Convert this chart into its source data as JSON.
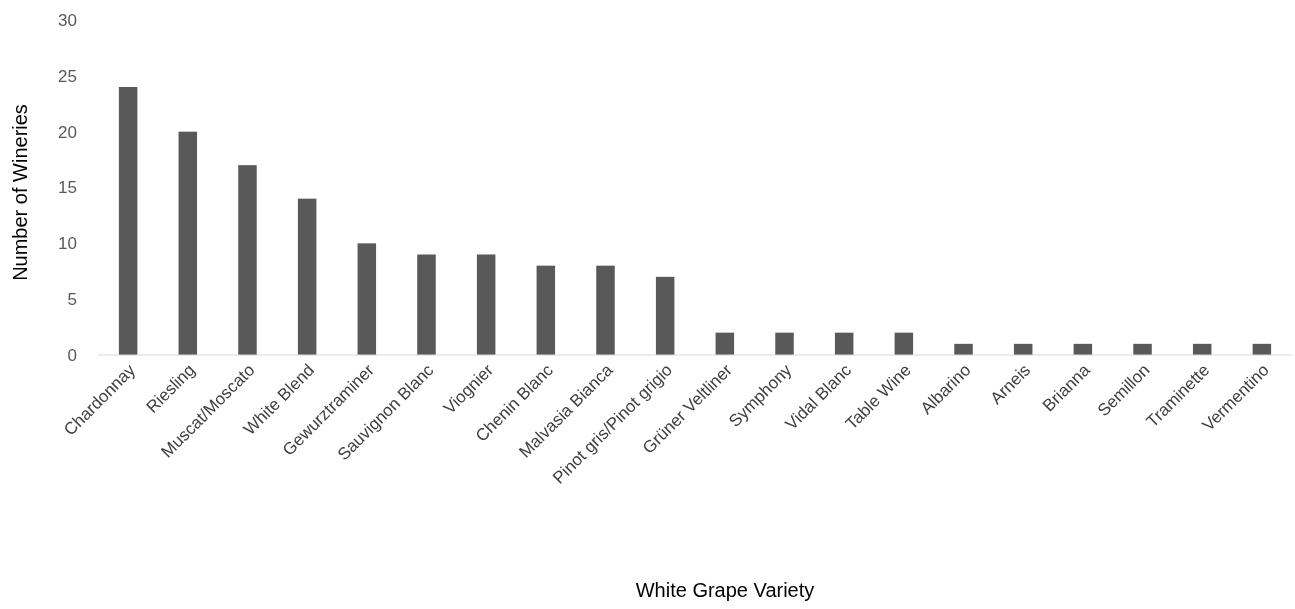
{
  "chart_data": {
    "type": "bar",
    "xlabel": "White Grape Variety",
    "ylabel": "Number of Wineries",
    "categories": [
      "Chardonnay",
      "Riesling",
      "Muscat/Moscato",
      "White Blend",
      "Gewurztraminer",
      "Sauvignon Blanc",
      "Viognier",
      "Chenin Blanc",
      "Malvasia Bianca",
      "Pinot gris/Pinot grigio",
      "Grüner Veltliner",
      "Symphony",
      "Vidal Blanc",
      "Table Wine",
      "Albarino",
      "Arneis",
      "Brianna",
      "Semillon",
      "Traminette",
      "Vermentino"
    ],
    "values": [
      24,
      20,
      17,
      14,
      10,
      9,
      9,
      8,
      8,
      7,
      2,
      2,
      2,
      2,
      1,
      1,
      1,
      1,
      1,
      1
    ],
    "color": "#595959",
    "ylim": [
      0,
      30
    ],
    "yticks": [
      0,
      5,
      10,
      15,
      20,
      25,
      30
    ]
  }
}
